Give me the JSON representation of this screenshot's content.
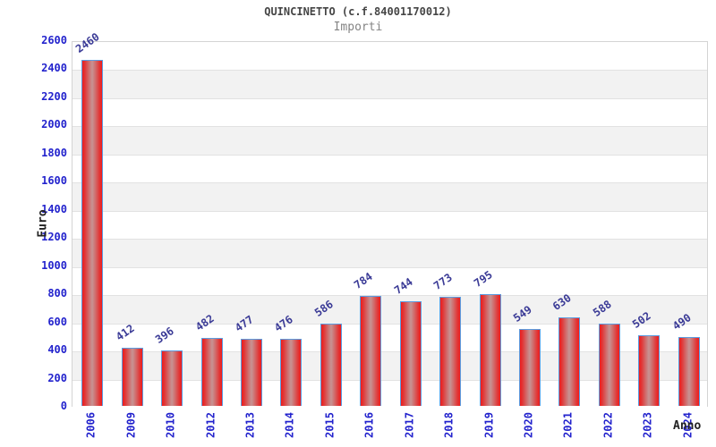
{
  "chart_data": {
    "type": "bar",
    "title": "QUINCINETTO (c.f.84001170012)",
    "subtitle": "Importi",
    "xlabel": "Anno",
    "ylabel": "Euro",
    "categories": [
      "2006",
      "2009",
      "2010",
      "2012",
      "2013",
      "2014",
      "2015",
      "2016",
      "2017",
      "2018",
      "2019",
      "2020",
      "2021",
      "2022",
      "2023",
      "2024"
    ],
    "values": [
      2460,
      412,
      396,
      482,
      477,
      476,
      586,
      784,
      744,
      773,
      795,
      549,
      630,
      588,
      502,
      490
    ],
    "ylim": [
      0,
      2600
    ],
    "ytick_step": 200,
    "grid": true,
    "grid_style": "alternating horizontal bands with light gridlines every 200",
    "legend_position": "none",
    "value_labels_shown": true,
    "value_label_rotation_deg": -35,
    "xtick_rotation_deg": -90
  },
  "colors": {
    "tick_label": "#2323cd",
    "value_label": "#3a3a96",
    "band": "#f2f2f2",
    "gridline": "#e2e2e2",
    "plot_border": "#d4d4d4",
    "title": "#454545",
    "subtitle": "#848484",
    "axis_title": "#222222",
    "bar_border": "#5b9ce0",
    "bar_edge": "#ee1c1c",
    "bar_mid": "#cf7070",
    "bar_center": "#c79494"
  }
}
